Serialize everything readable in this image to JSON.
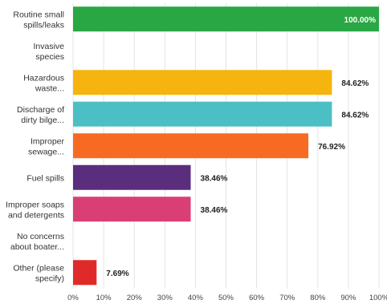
{
  "chart_data": {
    "type": "bar",
    "orientation": "horizontal",
    "categories": [
      [
        "Routine small",
        "spills/leaks"
      ],
      [
        "Invasive",
        "species"
      ],
      [
        "Hazardous",
        "waste..."
      ],
      [
        "Discharge of",
        "dirty bilge..."
      ],
      [
        "Improper",
        "sewage..."
      ],
      [
        "Fuel spills"
      ],
      [
        "Improper soaps",
        "and detergents"
      ],
      [
        "No concerns",
        "about boater..."
      ],
      [
        "Other (please",
        "specify)"
      ]
    ],
    "values": [
      100.0,
      0,
      84.62,
      84.62,
      76.92,
      38.46,
      38.46,
      0,
      7.69
    ],
    "value_labels": [
      "100.00%",
      "",
      "84.62%",
      "84.62%",
      "76.92%",
      "38.46%",
      "38.46%",
      "",
      "7.69%"
    ],
    "colors": [
      "#29a744",
      "#9e9e9e",
      "#f6b40e",
      "#4cbfc4",
      "#f66b21",
      "#5a2e7c",
      "#d93f74",
      "#9e9e9e",
      "#e02a2a"
    ],
    "xlim": [
      0,
      100
    ],
    "xticks": [
      "0%",
      "10%",
      "20%",
      "30%",
      "40%",
      "50%",
      "60%",
      "70%",
      "80%",
      "90%",
      "100%"
    ],
    "grid": true,
    "title": "",
    "xlabel": "",
    "ylabel": ""
  }
}
